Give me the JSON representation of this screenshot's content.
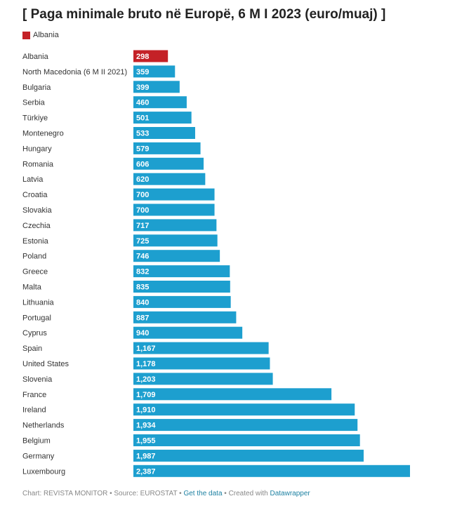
{
  "title": "[ Paga minimale bruto në Europë, 6 M I 2023 (euro/muaj) ]",
  "legend": {
    "label": "Albania",
    "color": "#c42127"
  },
  "colors": {
    "highlight": "#c42127",
    "default": "#1d9fcf"
  },
  "chart_data": {
    "type": "bar",
    "orientation": "horizontal",
    "title": "[ Paga minimale bruto në Europë, 6 M I 2023 (euro/muaj) ]",
    "xlim": [
      0,
      2387
    ],
    "categories": [
      "Albania",
      "North Macedonia (6 M II 2021)",
      "Bulgaria",
      "Serbia",
      "Türkiye",
      "Montenegro",
      "Hungary",
      "Romania",
      "Latvia",
      "Croatia",
      "Slovakia",
      "Czechia",
      "Estonia",
      "Poland",
      "Greece",
      "Malta",
      "Lithuania",
      "Portugal",
      "Cyprus",
      "Spain",
      "United States",
      "Slovenia",
      "France",
      "Ireland",
      "Netherlands",
      "Belgium",
      "Germany",
      "Luxembourg"
    ],
    "values": [
      298,
      359,
      399,
      460,
      501,
      533,
      579,
      606,
      620,
      700,
      700,
      717,
      725,
      746,
      832,
      835,
      840,
      887,
      940,
      1167,
      1178,
      1203,
      1709,
      1910,
      1934,
      1955,
      1987,
      2387
    ],
    "value_labels": [
      "298",
      "359",
      "399",
      "460",
      "501",
      "533",
      "579",
      "606",
      "620",
      "700",
      "700",
      "717",
      "725",
      "746",
      "832",
      "835",
      "840",
      "887",
      "940",
      "1,167",
      "1,178",
      "1,203",
      "1,709",
      "1,910",
      "1,934",
      "1,955",
      "1,987",
      "2,387"
    ],
    "highlight": "Albania",
    "grid": false
  },
  "footer": {
    "prefix": "Chart: REVISTA MONITOR • Source: EUROSTAT • ",
    "get_data": "Get the data",
    "middle": " • Created with ",
    "datawrapper": "Datawrapper"
  }
}
